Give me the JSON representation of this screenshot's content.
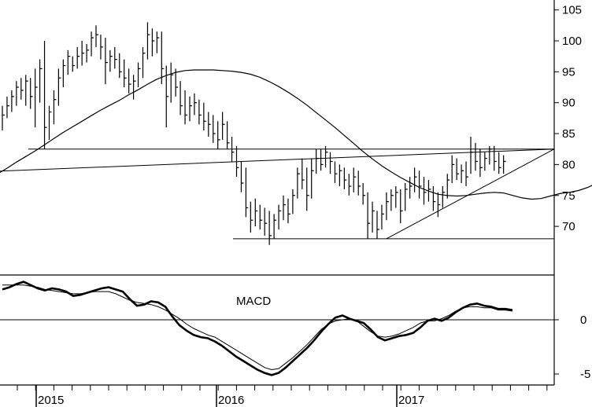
{
  "chart_data": [
    {
      "type": "ohlc",
      "title": "",
      "x_axis": {
        "ticks": [
          "2015",
          "2016",
          "2017"
        ]
      },
      "y_axis": {
        "ticks": [
          70,
          75,
          80,
          85,
          90,
          95,
          100,
          105
        ],
        "ylim": [
          65.5,
          106.5
        ]
      },
      "bars": [
        {
          "h": 89.5,
          "l": 85.5,
          "c": 88.0
        },
        {
          "h": 91.0,
          "l": 87.5,
          "c": 89.5
        },
        {
          "h": 92.0,
          "l": 88.5,
          "c": 91.0
        },
        {
          "h": 93.5,
          "l": 89.5,
          "c": 92.5
        },
        {
          "h": 94.0,
          "l": 90.5,
          "c": 92.0
        },
        {
          "h": 94.5,
          "l": 89.5,
          "c": 93.5
        },
        {
          "h": 94.0,
          "l": 89.0,
          "c": 91.0
        },
        {
          "h": 95.5,
          "l": 86.0,
          "c": 92.5
        },
        {
          "h": 97.0,
          "l": 90.0,
          "c": 95.5
        },
        {
          "h": 100.0,
          "l": 82.5,
          "c": 86.0
        },
        {
          "h": 89.5,
          "l": 84.0,
          "c": 88.5
        },
        {
          "h": 92.0,
          "l": 86.5,
          "c": 90.5
        },
        {
          "h": 95.5,
          "l": 89.5,
          "c": 94.0
        },
        {
          "h": 97.0,
          "l": 92.5,
          "c": 96.0
        },
        {
          "h": 98.5,
          "l": 94.5,
          "c": 97.5
        },
        {
          "h": 97.5,
          "l": 95.0,
          "c": 96.0
        },
        {
          "h": 99.0,
          "l": 95.5,
          "c": 97.5
        },
        {
          "h": 100.0,
          "l": 96.0,
          "c": 98.0
        },
        {
          "h": 99.5,
          "l": 96.5,
          "c": 98.5
        },
        {
          "h": 101.5,
          "l": 97.5,
          "c": 100.5
        },
        {
          "h": 102.5,
          "l": 99.0,
          "c": 101.0
        },
        {
          "h": 101.0,
          "l": 97.0,
          "c": 99.0
        },
        {
          "h": 100.5,
          "l": 93.0,
          "c": 96.5
        },
        {
          "h": 98.5,
          "l": 95.0,
          "c": 97.5
        },
        {
          "h": 99.0,
          "l": 95.5,
          "c": 97.0
        },
        {
          "h": 98.0,
          "l": 94.0,
          "c": 95.0
        },
        {
          "h": 97.0,
          "l": 92.5,
          "c": 94.0
        },
        {
          "h": 95.5,
          "l": 91.5,
          "c": 93.0
        },
        {
          "h": 94.5,
          "l": 90.5,
          "c": 93.5
        },
        {
          "h": 96.5,
          "l": 92.5,
          "c": 95.5
        },
        {
          "h": 99.0,
          "l": 94.0,
          "c": 98.0
        },
        {
          "h": 103.0,
          "l": 97.0,
          "c": 101.0
        },
        {
          "h": 102.0,
          "l": 97.5,
          "c": 100.0
        },
        {
          "h": 101.5,
          "l": 98.0,
          "c": 100.5
        },
        {
          "h": 101.5,
          "l": 93.0,
          "c": 95.5
        },
        {
          "h": 96.0,
          "l": 86.0,
          "c": 91.0
        },
        {
          "h": 96.5,
          "l": 90.0,
          "c": 94.5
        },
        {
          "h": 95.5,
          "l": 91.0,
          "c": 92.5
        },
        {
          "h": 93.5,
          "l": 88.0,
          "c": 89.5
        },
        {
          "h": 92.0,
          "l": 86.5,
          "c": 88.0
        },
        {
          "h": 91.0,
          "l": 87.0,
          "c": 89.5
        },
        {
          "h": 91.5,
          "l": 88.0,
          "c": 90.0
        },
        {
          "h": 90.5,
          "l": 86.5,
          "c": 88.0
        },
        {
          "h": 90.0,
          "l": 85.5,
          "c": 87.0
        },
        {
          "h": 88.5,
          "l": 84.5,
          "c": 86.5
        },
        {
          "h": 88.0,
          "l": 83.5,
          "c": 85.0
        },
        {
          "h": 87.0,
          "l": 82.5,
          "c": 84.0
        },
        {
          "h": 88.5,
          "l": 84.0,
          "c": 86.5
        },
        {
          "h": 87.0,
          "l": 82.5,
          "c": 83.5
        },
        {
          "h": 84.5,
          "l": 80.5,
          "c": 82.0
        },
        {
          "h": 83.0,
          "l": 78.0,
          "c": 79.5
        },
        {
          "h": 80.5,
          "l": 75.5,
          "c": 77.0
        },
        {
          "h": 79.5,
          "l": 71.5,
          "c": 73.0
        },
        {
          "h": 74.0,
          "l": 69.0,
          "c": 71.0
        },
        {
          "h": 74.5,
          "l": 70.0,
          "c": 72.5
        },
        {
          "h": 73.5,
          "l": 69.5,
          "c": 71.0
        },
        {
          "h": 73.0,
          "l": 68.5,
          "c": 70.5
        },
        {
          "h": 72.5,
          "l": 67.0,
          "c": 68.5
        },
        {
          "h": 72.0,
          "l": 68.0,
          "c": 71.0
        },
        {
          "h": 73.5,
          "l": 69.5,
          "c": 72.5
        },
        {
          "h": 75.0,
          "l": 71.0,
          "c": 73.5
        },
        {
          "h": 74.5,
          "l": 70.5,
          "c": 72.0
        },
        {
          "h": 76.0,
          "l": 72.0,
          "c": 75.0
        },
        {
          "h": 79.5,
          "l": 74.5,
          "c": 78.5
        },
        {
          "h": 81.0,
          "l": 76.0,
          "c": 77.5
        },
        {
          "h": 79.5,
          "l": 72.5,
          "c": 75.0
        },
        {
          "h": 81.0,
          "l": 74.5,
          "c": 79.0
        },
        {
          "h": 82.5,
          "l": 78.5,
          "c": 81.0
        },
        {
          "h": 82.5,
          "l": 79.0,
          "c": 80.0
        },
        {
          "h": 83.0,
          "l": 79.5,
          "c": 82.0
        },
        {
          "h": 82.0,
          "l": 78.5,
          "c": 80.5
        },
        {
          "h": 80.5,
          "l": 77.0,
          "c": 78.5
        },
        {
          "h": 80.0,
          "l": 76.5,
          "c": 79.0
        },
        {
          "h": 79.5,
          "l": 76.0,
          "c": 77.5
        },
        {
          "h": 78.5,
          "l": 75.0,
          "c": 76.5
        },
        {
          "h": 79.5,
          "l": 75.5,
          "c": 78.0
        },
        {
          "h": 79.0,
          "l": 75.0,
          "c": 76.5
        },
        {
          "h": 77.0,
          "l": 73.5,
          "c": 75.0
        },
        {
          "h": 75.5,
          "l": 68.0,
          "c": 70.5
        },
        {
          "h": 74.0,
          "l": 69.0,
          "c": 72.5
        },
        {
          "h": 72.5,
          "l": 68.0,
          "c": 69.5
        },
        {
          "h": 73.5,
          "l": 69.5,
          "c": 72.0
        },
        {
          "h": 75.5,
          "l": 71.0,
          "c": 74.0
        },
        {
          "h": 76.0,
          "l": 72.5,
          "c": 75.0
        },
        {
          "h": 76.5,
          "l": 73.0,
          "c": 75.5
        },
        {
          "h": 76.0,
          "l": 70.5,
          "c": 72.5
        },
        {
          "h": 77.0,
          "l": 72.5,
          "c": 76.0
        },
        {
          "h": 78.0,
          "l": 74.5,
          "c": 76.5
        },
        {
          "h": 79.5,
          "l": 75.5,
          "c": 78.0
        },
        {
          "h": 79.0,
          "l": 74.5,
          "c": 76.5
        },
        {
          "h": 78.0,
          "l": 73.5,
          "c": 75.5
        },
        {
          "h": 77.5,
          "l": 74.0,
          "c": 76.0
        },
        {
          "h": 76.5,
          "l": 72.5,
          "c": 74.0
        },
        {
          "h": 75.5,
          "l": 71.5,
          "c": 73.5
        },
        {
          "h": 76.5,
          "l": 73.0,
          "c": 75.5
        },
        {
          "h": 78.5,
          "l": 74.5,
          "c": 77.5
        },
        {
          "h": 81.5,
          "l": 77.0,
          "c": 80.0
        },
        {
          "h": 81.0,
          "l": 77.5,
          "c": 78.5
        },
        {
          "h": 80.0,
          "l": 77.0,
          "c": 79.0
        },
        {
          "h": 80.5,
          "l": 76.5,
          "c": 78.0
        },
        {
          "h": 84.5,
          "l": 78.5,
          "c": 82.0
        },
        {
          "h": 83.5,
          "l": 79.0,
          "c": 80.5
        },
        {
          "h": 82.5,
          "l": 78.0,
          "c": 79.5
        },
        {
          "h": 82.0,
          "l": 79.0,
          "c": 81.0
        },
        {
          "h": 83.0,
          "l": 80.0,
          "c": 82.5
        },
        {
          "h": 83.0,
          "l": 79.0,
          "c": 80.5
        },
        {
          "h": 82.0,
          "l": 78.5,
          "c": 79.5
        },
        {
          "h": 81.5,
          "l": 78.5,
          "c": 80.5
        }
      ],
      "moving_average": [
        78.5,
        79.4,
        80.4,
        81.3,
        82.2,
        83.2,
        84.2,
        85.2,
        86.1,
        87.0,
        87.9,
        88.8,
        89.6,
        90.4,
        91.3,
        92.1,
        93.0,
        93.8,
        94.4,
        94.9,
        95.2,
        95.3,
        95.3,
        95.3,
        95.2,
        95.1,
        94.9,
        94.6,
        94.1,
        93.4,
        92.6,
        91.7,
        90.7,
        89.6,
        88.4,
        87.2,
        86.0,
        84.7,
        83.4,
        82.1,
        80.9,
        79.8,
        78.8,
        77.9,
        77.1,
        76.3,
        75.7,
        75.2,
        75.0,
        74.9,
        75.0,
        75.2,
        75.4,
        75.5,
        75.4,
        75.0,
        74.6,
        74.4,
        74.5,
        74.9,
        75.3,
        75.5,
        75.8,
        76.3,
        77.0
      ],
      "support_levels": [
        82.5,
        68.0
      ],
      "trendlines": [
        {
          "from": {
            "bar": -15,
            "value": 78.5
          },
          "to": {
            "bar": 130,
            "value": 82.5
          }
        },
        {
          "from": {
            "bar": 82,
            "value": 68.0
          },
          "to": {
            "bar": 121,
            "value": 82.5
          }
        }
      ]
    },
    {
      "type": "line",
      "title": "MACD",
      "y_axis": {
        "ticks": [
          0,
          -5
        ],
        "ylim": [
          -5.8,
          4.2
        ]
      },
      "series": [
        {
          "values": [
            2.8,
            3.0,
            3.3,
            3.5,
            3.2,
            2.9,
            2.7,
            2.9,
            2.8,
            2.6,
            2.2,
            2.3,
            2.5,
            2.7,
            2.9,
            3.0,
            2.8,
            2.6,
            1.9,
            1.3,
            1.4,
            1.7,
            1.6,
            1.2,
            0.3,
            -0.5,
            -1.0,
            -1.4,
            -1.6,
            -1.7,
            -2.0,
            -2.4,
            -2.9,
            -3.4,
            -3.8,
            -4.2,
            -4.6,
            -4.9,
            -5.1,
            -4.9,
            -4.4,
            -3.8,
            -3.2,
            -2.6,
            -1.9,
            -1.1,
            -0.4,
            0.2,
            0.4,
            0.1,
            -0.1,
            -0.3,
            -0.9,
            -1.6,
            -1.9,
            -1.7,
            -1.5,
            -1.4,
            -1.2,
            -0.7,
            -0.1,
            0.1,
            -0.1,
            0.2,
            0.7,
            1.1,
            1.4,
            1.5,
            1.3,
            1.2,
            1.0,
            1.0,
            0.9
          ]
        },
        {
          "values": [
            3.2,
            3.2,
            3.2,
            3.2,
            3.1,
            3.0,
            2.8,
            2.7,
            2.6,
            2.5,
            2.4,
            2.4,
            2.5,
            2.6,
            2.6,
            2.6,
            2.4,
            2.1,
            1.8,
            1.6,
            1.5,
            1.4,
            1.2,
            0.9,
            0.5,
            0.1,
            -0.4,
            -0.8,
            -1.1,
            -1.4,
            -1.6,
            -2.0,
            -2.4,
            -2.8,
            -3.2,
            -3.6,
            -4.0,
            -4.4,
            -4.6,
            -4.5,
            -4.0,
            -3.5,
            -2.9,
            -2.3,
            -1.6,
            -0.9,
            -0.4,
            -0.1,
            0.0,
            0.1,
            -0.1,
            -0.6,
            -1.1,
            -1.5,
            -1.6,
            -1.5,
            -1.3,
            -1.0,
            -0.7,
            -0.3,
            -0.1,
            -0.1,
            0.1,
            0.4,
            0.8,
            1.1,
            1.2,
            1.2,
            1.1,
            1.1,
            0.9,
            0.9,
            0.8
          ]
        }
      ]
    }
  ]
}
